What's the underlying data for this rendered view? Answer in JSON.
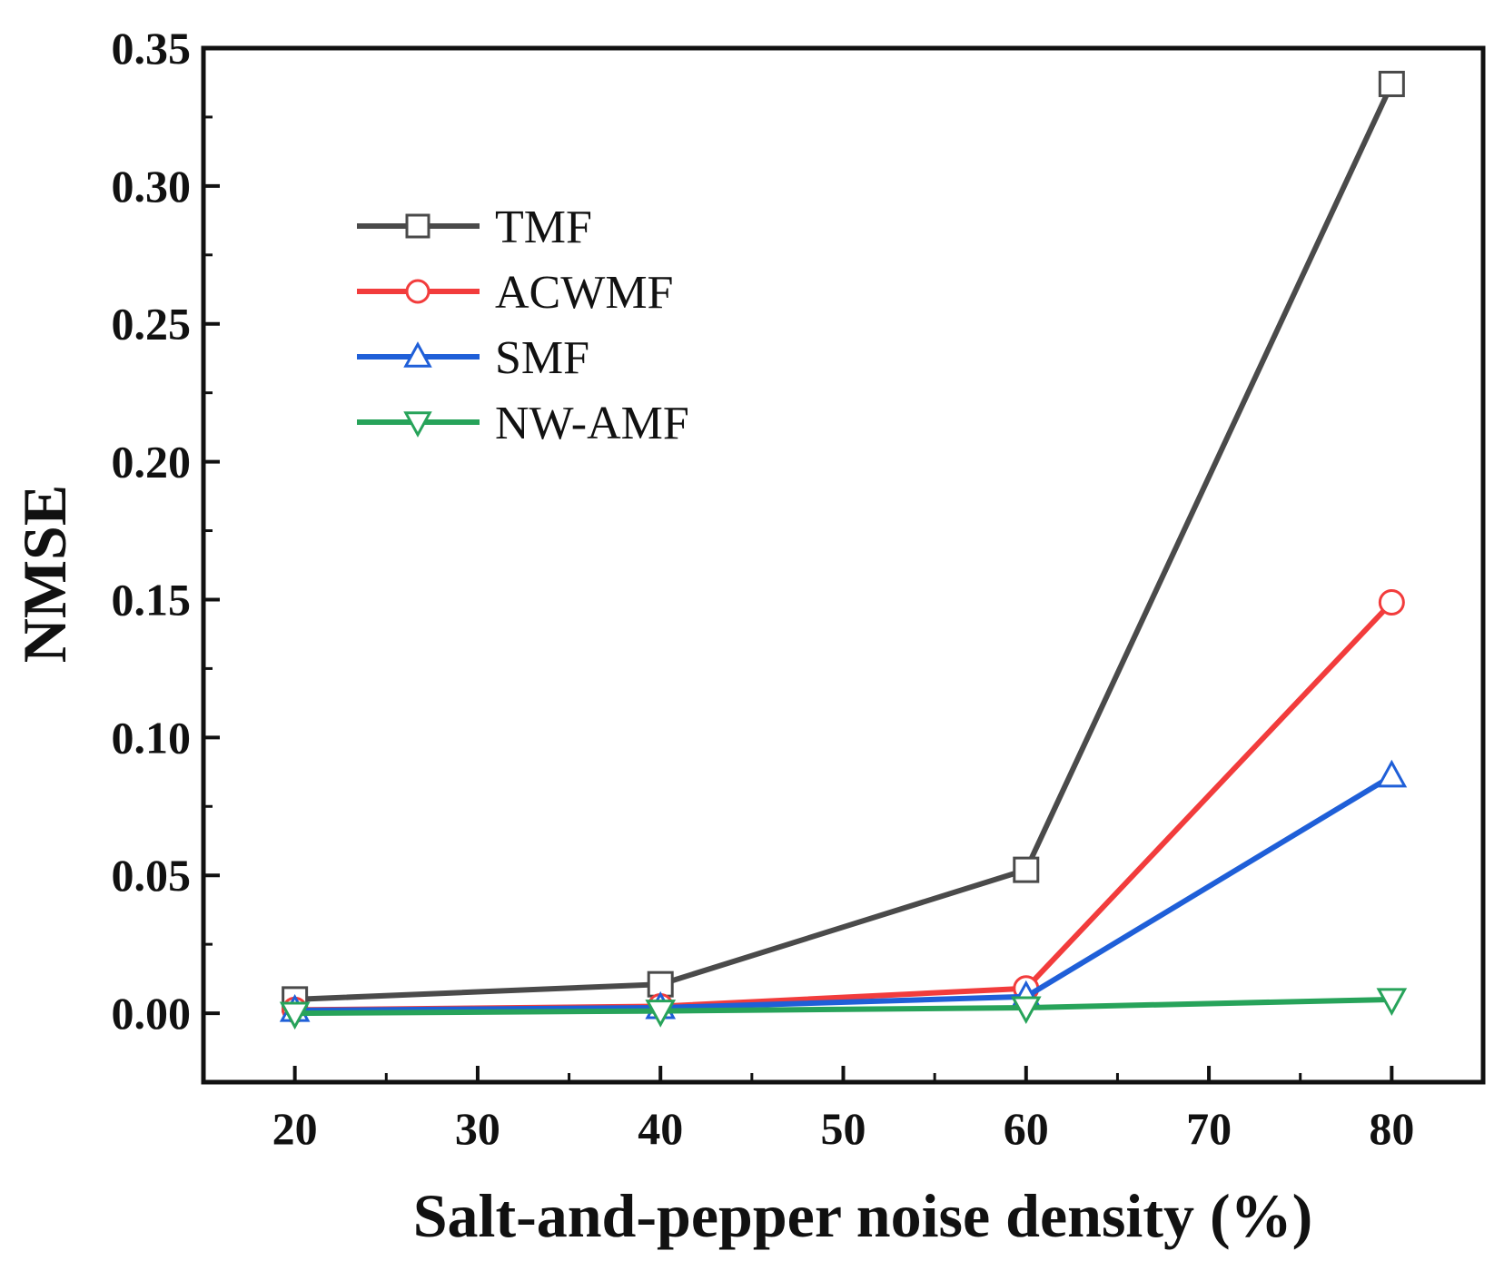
{
  "chart_data": {
    "type": "line",
    "title": "",
    "xlabel": "Salt-and-pepper noise density (%)",
    "ylabel": "NMSE",
    "x": [
      20,
      40,
      60,
      80
    ],
    "xlim": [
      15,
      85
    ],
    "ylim": [
      -0.025,
      0.35
    ],
    "xticks": [
      20,
      30,
      40,
      50,
      60,
      70,
      80
    ],
    "xtick_labels": [
      "20",
      "30",
      "40",
      "50",
      "60",
      "70",
      "80"
    ],
    "yticks": [
      0.0,
      0.05,
      0.1,
      0.15,
      0.2,
      0.25,
      0.3,
      0.35
    ],
    "ytick_labels": [
      "0.00",
      "0.05",
      "0.10",
      "0.15",
      "0.20",
      "0.25",
      "0.30",
      "0.35"
    ],
    "grid": false,
    "legend_position": "top-left",
    "series": [
      {
        "name": "TMF",
        "marker": "square",
        "color": "#4a4a4a",
        "values": [
          0.005,
          0.0105,
          0.052,
          0.337
        ]
      },
      {
        "name": "ACWMF",
        "marker": "circle",
        "color": "#f23c3c",
        "values": [
          0.0012,
          0.0025,
          0.009,
          0.149
        ]
      },
      {
        "name": "SMF",
        "marker": "triangle-up",
        "color": "#1f5fd8",
        "values": [
          0.001,
          0.002,
          0.006,
          0.086
        ]
      },
      {
        "name": "NW-AMF",
        "marker": "triangle-down",
        "color": "#27a35a",
        "values": [
          0.0,
          0.0008,
          0.002,
          0.005
        ]
      }
    ]
  }
}
